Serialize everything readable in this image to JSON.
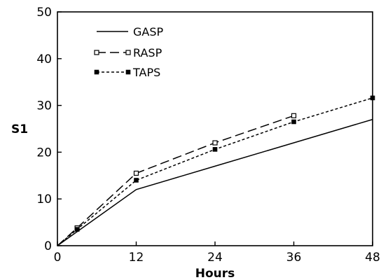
{
  "chart_data": {
    "type": "line",
    "title": "",
    "xlabel": "Hours",
    "ylabel": "S1",
    "xlim": [
      0,
      48
    ],
    "ylim": [
      0,
      50
    ],
    "xticks": [
      0,
      12,
      24,
      36,
      48
    ],
    "yticks": [
      0,
      10,
      20,
      30,
      40,
      50
    ],
    "grid": false,
    "legend_position": "top-left",
    "series": [
      {
        "name": "GASP",
        "style": "solid",
        "marker": "none",
        "color": "#000000",
        "x": [
          0,
          12,
          24,
          36,
          48
        ],
        "y": [
          0,
          12,
          17,
          22,
          27
        ]
      },
      {
        "name": "RASP",
        "style": "long-dash",
        "marker": "open-square",
        "color": "#000000",
        "x": [
          0,
          3,
          12,
          24,
          36
        ],
        "y": [
          0,
          3.8,
          15.5,
          22,
          27.8
        ]
      },
      {
        "name": "TAPS",
        "style": "short-dash",
        "marker": "filled-square",
        "color": "#000000",
        "x": [
          0,
          3,
          12,
          24,
          36,
          48
        ],
        "y": [
          0,
          3.5,
          14,
          20.6,
          26.5,
          31.6
        ]
      }
    ]
  }
}
